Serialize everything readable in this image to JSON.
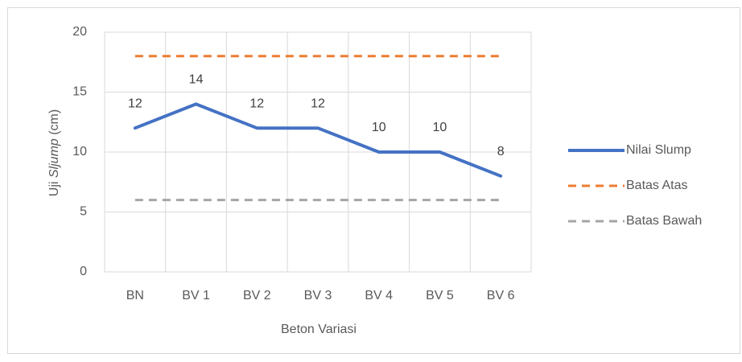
{
  "chart_data": {
    "type": "line",
    "xlabel": "Beton Variasi",
    "ylabel_parts": [
      "Uji ",
      "Sljump",
      " (cm)"
    ],
    "categories": [
      "BN",
      "BV 1",
      "BV 2",
      "BV 3",
      "BV 4",
      "BV 5",
      "BV 6"
    ],
    "series": [
      {
        "name": "Nilai Slump",
        "color": "#4472c4",
        "dashed": false,
        "data_labels": true,
        "values": [
          12,
          14,
          12,
          12,
          10,
          10,
          8
        ]
      },
      {
        "name": "Batas Atas",
        "color": "#ed7d31",
        "dashed": true,
        "data_labels": false,
        "values": [
          18,
          18,
          18,
          18,
          18,
          18,
          18
        ]
      },
      {
        "name": "Batas Bawah",
        "color": "#a5a5a5",
        "dashed": true,
        "data_labels": false,
        "values": [
          6,
          6,
          6,
          6,
          6,
          6,
          6
        ]
      }
    ],
    "ylim": [
      0,
      20
    ],
    "yticks": [
      0,
      5,
      10,
      15,
      20
    ],
    "grid": true,
    "legend": "right"
  }
}
